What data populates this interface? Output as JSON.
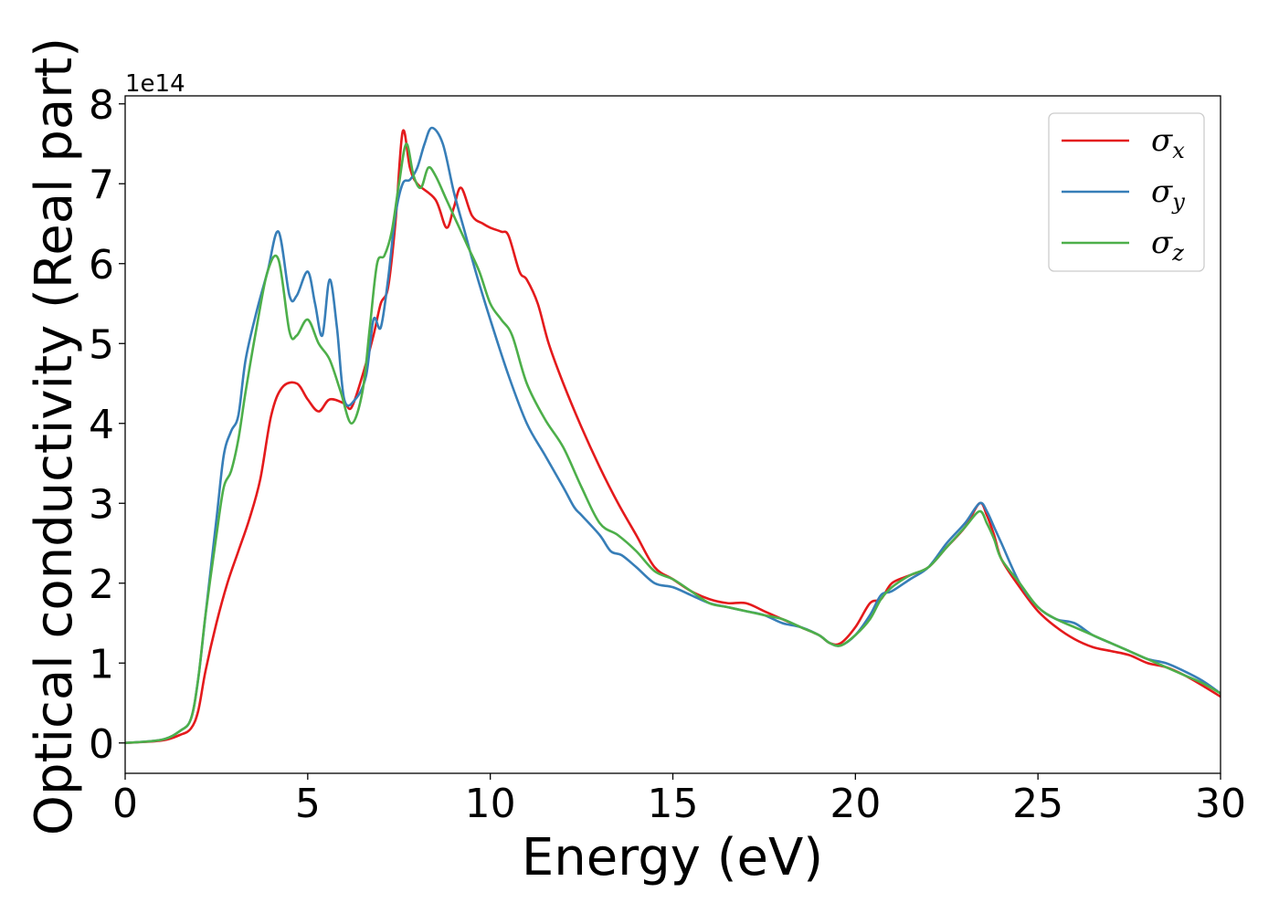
{
  "chart_data": {
    "type": "line",
    "title": "",
    "xlabel": "Energy (eV)",
    "ylabel": "Optical conductivity (Real part)",
    "y_offset_label": "1e14",
    "xlim": [
      0,
      30
    ],
    "ylim": [
      -0.38,
      8.1
    ],
    "xticks": [
      0,
      5,
      10,
      15,
      20,
      25,
      30
    ],
    "yticks": [
      0,
      1,
      2,
      3,
      4,
      5,
      6,
      7,
      8
    ],
    "grid": false,
    "legend": "top-right",
    "series": [
      {
        "name": "σx",
        "symbol": "σ",
        "sub": "x",
        "color": "#e41a1c",
        "x": [
          0,
          1,
          1.5,
          1.8,
          2,
          2.2,
          2.5,
          2.8,
          3.1,
          3.4,
          3.7,
          4.0,
          4.3,
          4.7,
          5.0,
          5.3,
          5.6,
          6.0,
          6.2,
          6.5,
          6.8,
          7.0,
          7.2,
          7.4,
          7.6,
          7.8,
          8.0,
          8.5,
          8.8,
          9.0,
          9.2,
          9.5,
          9.8,
          10.0,
          10.3,
          10.5,
          10.8,
          11.0,
          11.3,
          11.6,
          12.0,
          12.5,
          13.0,
          13.5,
          14.0,
          14.5,
          15.0,
          15.5,
          16.0,
          16.5,
          17.0,
          17.5,
          18.0,
          18.5,
          19.0,
          19.3,
          19.6,
          20.0,
          20.4,
          20.7,
          21.0,
          21.5,
          22.0,
          22.5,
          23.0,
          23.4,
          23.6,
          23.8,
          24.0,
          24.5,
          25.0,
          25.5,
          26.0,
          26.5,
          27.0,
          27.5,
          28.0,
          28.5,
          29.0,
          29.5,
          30.0
        ],
        "values": [
          0,
          0.03,
          0.1,
          0.18,
          0.4,
          0.9,
          1.5,
          2.0,
          2.4,
          2.8,
          3.3,
          4.1,
          4.45,
          4.5,
          4.3,
          4.15,
          4.3,
          4.25,
          4.2,
          4.6,
          5.1,
          5.5,
          5.7,
          6.5,
          7.65,
          7.2,
          7.0,
          6.8,
          6.45,
          6.7,
          6.95,
          6.6,
          6.5,
          6.45,
          6.4,
          6.35,
          5.9,
          5.8,
          5.5,
          5.0,
          4.5,
          3.95,
          3.45,
          3.0,
          2.6,
          2.2,
          2.05,
          1.9,
          1.8,
          1.75,
          1.75,
          1.65,
          1.55,
          1.45,
          1.35,
          1.25,
          1.25,
          1.45,
          1.75,
          1.8,
          2.0,
          2.1,
          2.2,
          2.45,
          2.7,
          3.0,
          2.85,
          2.6,
          2.3,
          1.95,
          1.65,
          1.45,
          1.3,
          1.2,
          1.15,
          1.1,
          1.0,
          0.95,
          0.85,
          0.72,
          0.58
        ]
      },
      {
        "name": "σy",
        "symbol": "σ",
        "sub": "y",
        "color": "#377eb8",
        "x": [
          0,
          1,
          1.5,
          1.8,
          2,
          2.2,
          2.5,
          2.7,
          2.9,
          3.1,
          3.3,
          3.6,
          3.9,
          4.2,
          4.5,
          4.7,
          5.0,
          5.2,
          5.4,
          5.6,
          5.8,
          6.0,
          6.3,
          6.6,
          6.8,
          7.0,
          7.2,
          7.4,
          7.6,
          7.8,
          8.0,
          8.2,
          8.4,
          8.7,
          9.0,
          9.3,
          9.6,
          10.0,
          10.5,
          11.0,
          11.5,
          12.0,
          12.3,
          12.5,
          13.0,
          13.3,
          13.6,
          14.0,
          14.5,
          15.0,
          15.5,
          16.0,
          16.5,
          17.0,
          17.5,
          18.0,
          18.5,
          19.0,
          19.3,
          19.6,
          20.0,
          20.4,
          20.7,
          21.0,
          21.5,
          22.0,
          22.5,
          23.0,
          23.4,
          23.6,
          23.8,
          24.0,
          24.5,
          25.0,
          25.5,
          26.0,
          26.5,
          27.0,
          27.5,
          28.0,
          28.5,
          29.0,
          29.5,
          30.0
        ],
        "values": [
          0,
          0.04,
          0.15,
          0.3,
          0.8,
          1.6,
          2.8,
          3.6,
          3.9,
          4.1,
          4.8,
          5.4,
          5.9,
          6.4,
          5.6,
          5.6,
          5.9,
          5.5,
          5.1,
          5.8,
          5.2,
          4.3,
          4.3,
          4.6,
          5.3,
          5.2,
          5.8,
          6.6,
          7.0,
          7.05,
          7.2,
          7.5,
          7.7,
          7.5,
          6.9,
          6.4,
          5.9,
          5.3,
          4.6,
          4.0,
          3.6,
          3.2,
          2.95,
          2.85,
          2.6,
          2.4,
          2.35,
          2.2,
          2.0,
          1.95,
          1.85,
          1.75,
          1.7,
          1.65,
          1.6,
          1.5,
          1.45,
          1.35,
          1.25,
          1.22,
          1.35,
          1.6,
          1.85,
          1.9,
          2.05,
          2.2,
          2.5,
          2.75,
          3.0,
          2.9,
          2.7,
          2.5,
          2.0,
          1.7,
          1.55,
          1.5,
          1.35,
          1.25,
          1.15,
          1.05,
          1.0,
          0.9,
          0.78,
          0.62
        ]
      },
      {
        "name": "σz",
        "symbol": "σ",
        "sub": "z",
        "color": "#4daf4a",
        "x": [
          0,
          1,
          1.5,
          1.8,
          2,
          2.2,
          2.5,
          2.7,
          2.9,
          3.1,
          3.3,
          3.6,
          3.9,
          4.2,
          4.5,
          4.7,
          5.0,
          5.3,
          5.6,
          5.9,
          6.2,
          6.5,
          6.7,
          6.9,
          7.1,
          7.3,
          7.5,
          7.7,
          7.9,
          8.1,
          8.3,
          8.5,
          8.8,
          9.1,
          9.4,
          9.7,
          10.0,
          10.3,
          10.6,
          11.0,
          11.5,
          12.0,
          12.5,
          13.0,
          13.5,
          14.0,
          14.5,
          15.0,
          15.5,
          16.0,
          16.5,
          17.0,
          17.5,
          18.0,
          18.5,
          19.0,
          19.3,
          19.6,
          20.0,
          20.4,
          20.7,
          21.0,
          21.5,
          22.0,
          22.5,
          23.0,
          23.4,
          23.6,
          23.8,
          24.0,
          24.5,
          25.0,
          25.5,
          26.0,
          26.5,
          27.0,
          27.5,
          28.0,
          28.5,
          29.0,
          29.5,
          30.0
        ],
        "values": [
          0,
          0.04,
          0.15,
          0.3,
          0.8,
          1.6,
          2.6,
          3.2,
          3.4,
          3.8,
          4.4,
          5.2,
          5.9,
          6.05,
          5.15,
          5.1,
          5.3,
          5.0,
          4.8,
          4.4,
          4.0,
          4.4,
          5.2,
          6.0,
          6.1,
          6.4,
          7.0,
          7.5,
          7.1,
          6.95,
          7.2,
          7.1,
          6.8,
          6.5,
          6.2,
          5.9,
          5.5,
          5.3,
          5.1,
          4.5,
          4.05,
          3.7,
          3.2,
          2.75,
          2.6,
          2.4,
          2.15,
          2.05,
          1.9,
          1.75,
          1.7,
          1.65,
          1.6,
          1.55,
          1.45,
          1.35,
          1.25,
          1.22,
          1.35,
          1.55,
          1.8,
          1.95,
          2.1,
          2.2,
          2.45,
          2.7,
          2.9,
          2.75,
          2.55,
          2.3,
          2.0,
          1.7,
          1.55,
          1.45,
          1.35,
          1.25,
          1.15,
          1.05,
          0.95,
          0.85,
          0.75,
          0.62
        ]
      }
    ]
  }
}
